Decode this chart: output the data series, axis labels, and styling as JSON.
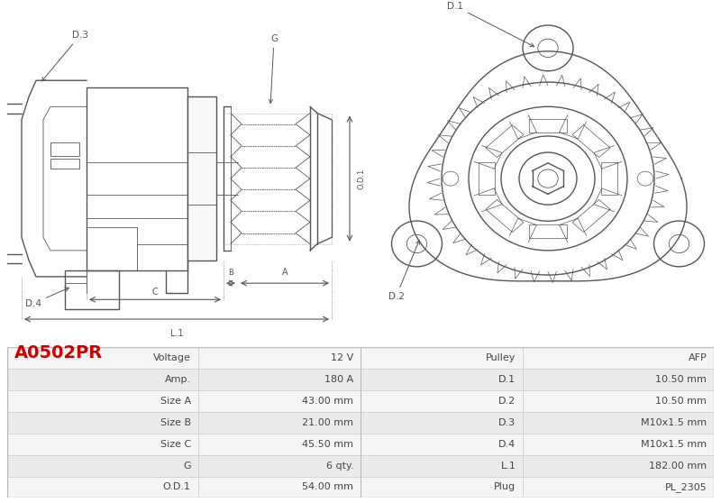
{
  "title": "A0502PR",
  "title_color": "#cc0000",
  "bg_color": "#ffffff",
  "table_rows": [
    [
      "Voltage",
      "12 V",
      "Pulley",
      "AFP"
    ],
    [
      "Amp.",
      "180 A",
      "D.1",
      "10.50 mm"
    ],
    [
      "Size A",
      "43.00 mm",
      "D.2",
      "10.50 mm"
    ],
    [
      "Size B",
      "21.00 mm",
      "D.3",
      "M10x1.5 mm"
    ],
    [
      "Size C",
      "45.50 mm",
      "D.4",
      "M10x1.5 mm"
    ],
    [
      "G",
      "6 qty.",
      "L.1",
      "182.00 mm"
    ],
    [
      "O.D.1",
      "54.00 mm",
      "Plug",
      "PL_2305"
    ]
  ],
  "table_row_bg1": "#f5f5f5",
  "table_row_bg2": "#ebebeb",
  "table_text_color": "#444444",
  "drawing_line_color": "#555555",
  "label_color": "#555555",
  "label_fontsize": 7.5,
  "table_fontsize": 8.0
}
